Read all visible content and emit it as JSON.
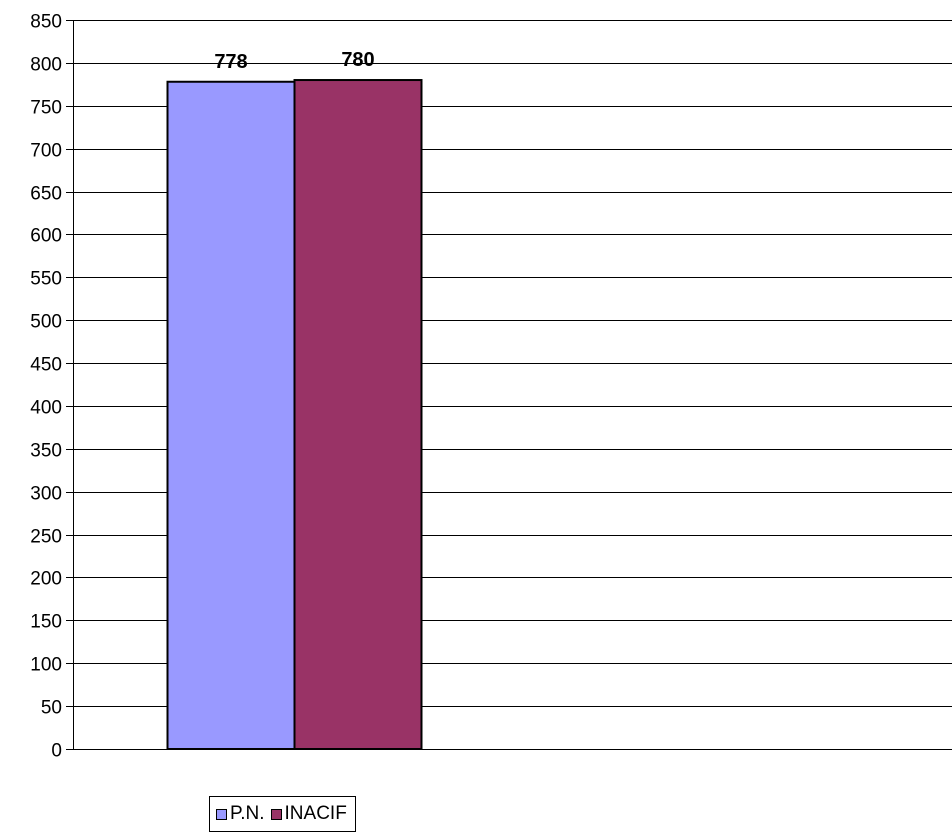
{
  "chart_data": {
    "type": "bar",
    "categories": [
      ""
    ],
    "series": [
      {
        "name": "P.N.",
        "values": [
          778
        ],
        "color": "#9999FF"
      },
      {
        "name": "INACIF",
        "values": [
          780
        ],
        "color": "#993366"
      }
    ],
    "data_labels": [
      "778",
      "780"
    ],
    "ylim": [
      0,
      850
    ],
    "yticks": [
      0,
      50,
      100,
      150,
      200,
      250,
      300,
      350,
      400,
      450,
      500,
      550,
      600,
      650,
      700,
      750,
      800,
      850
    ],
    "ytick_labels": [
      "0",
      "50",
      "100",
      "150",
      "200",
      "250",
      "300",
      "350",
      "400",
      "450",
      "500",
      "550",
      "600",
      "650",
      "700",
      "750",
      "800",
      "850"
    ],
    "grid": true,
    "legend_position": "bottom"
  }
}
